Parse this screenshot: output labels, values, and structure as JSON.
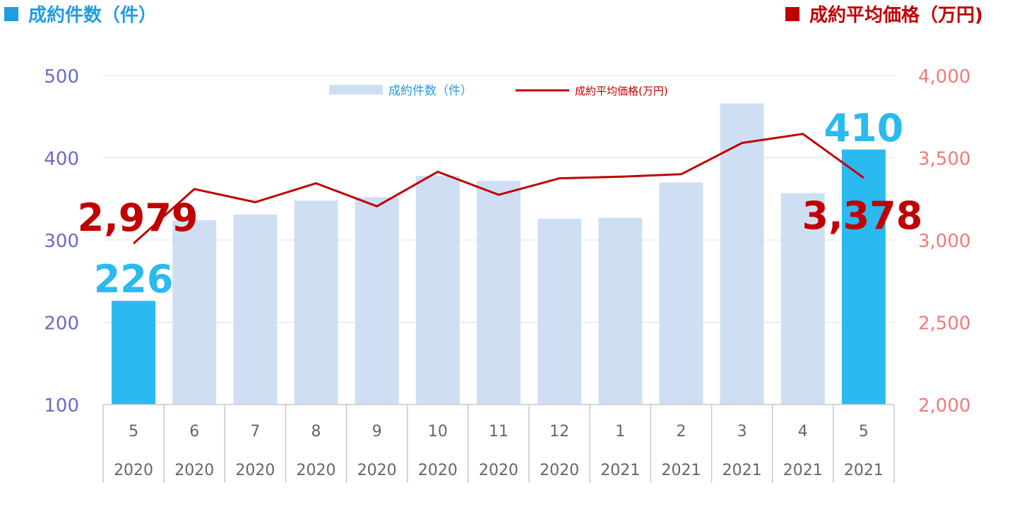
{
  "chart_data": {
    "type": "bar",
    "legend_left_header": "成約件数（件）",
    "legend_right_header": "成約平均価格（万円)",
    "legend": {
      "bar_label": "成約件数（件）",
      "line_label": "成約平均価格(万円)",
      "placement": "top-center"
    },
    "categories": [
      {
        "month": "5",
        "year": "2020"
      },
      {
        "month": "6",
        "year": "2020"
      },
      {
        "month": "7",
        "year": "2020"
      },
      {
        "month": "8",
        "year": "2020"
      },
      {
        "month": "9",
        "year": "2020"
      },
      {
        "month": "10",
        "year": "2020"
      },
      {
        "month": "11",
        "year": "2020"
      },
      {
        "month": "12",
        "year": "2020"
      },
      {
        "month": "1",
        "year": "2021"
      },
      {
        "month": "2",
        "year": "2021"
      },
      {
        "month": "3",
        "year": "2021"
      },
      {
        "month": "4",
        "year": "2021"
      },
      {
        "month": "5",
        "year": "2021"
      }
    ],
    "series": [
      {
        "name": "成約件数（件）",
        "type": "bar",
        "axis": "left",
        "values": [
          226,
          324,
          331,
          348,
          352,
          378,
          372,
          326,
          327,
          370,
          466,
          357,
          410
        ],
        "highlight_indices": [
          0,
          12
        ]
      },
      {
        "name": "成約平均価格(万円)",
        "type": "line",
        "axis": "right",
        "values": [
          2979,
          3310,
          3230,
          3345,
          3205,
          3415,
          3275,
          3375,
          3385,
          3400,
          3590,
          3645,
          3378
        ]
      }
    ],
    "y_left": {
      "min": 100,
      "max": 500,
      "ticks": [
        "100",
        "200",
        "300",
        "400",
        "500"
      ]
    },
    "y_right": {
      "min": 2000,
      "max": 4000,
      "ticks": [
        "2,000",
        "2,500",
        "3,000",
        "3,500",
        "4,000"
      ]
    },
    "annotations": [
      {
        "text": "226",
        "series": 0,
        "index": 0
      },
      {
        "text": "410",
        "series": 0,
        "index": 12
      },
      {
        "text": "2,979",
        "series": 1,
        "index": 0
      },
      {
        "text": "3,378",
        "series": 1,
        "index": 12
      }
    ],
    "grid": true,
    "colors": {
      "bar": "#cfdff3",
      "bar_highlight": "#29baf0",
      "line": "#c00000",
      "left_axis_text": "#6b6bc6",
      "right_axis_text": "#f07b7b",
      "left_header": "#1e9de0",
      "right_header": "#c00000",
      "grid": "#e3e3e3"
    }
  }
}
